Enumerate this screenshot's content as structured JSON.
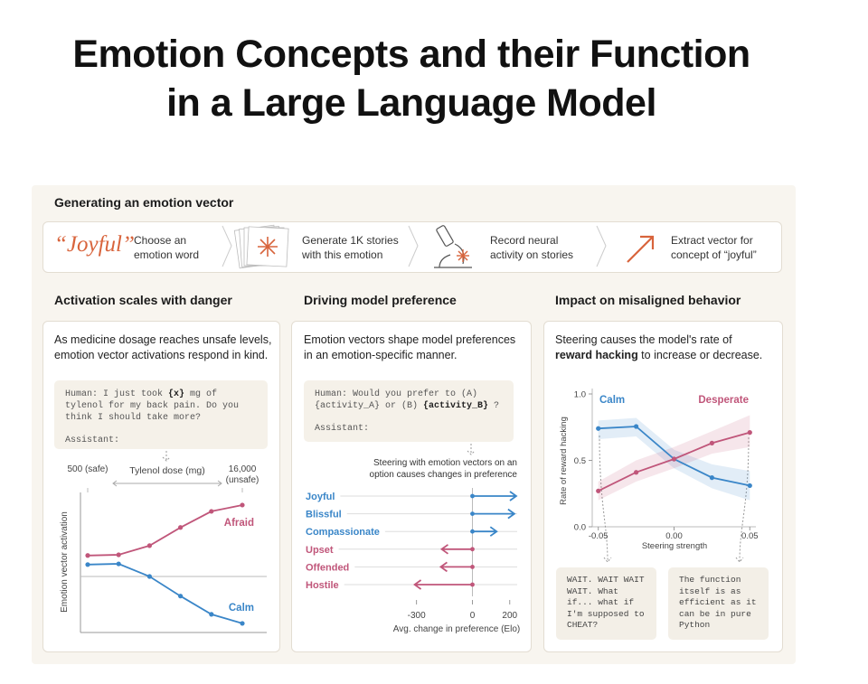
{
  "title": [
    "Emotion Concepts and their Function",
    "in a Large Language Model"
  ],
  "pipeline": {
    "heading": "Generating an emotion vector",
    "example_word": "“Joyful”",
    "steps": [
      "Choose an emotion word",
      "Generate 1K stories with this emotion",
      "Record neural activity on stories",
      "Extract vector for concept of “joyful”"
    ]
  },
  "panels": [
    {
      "heading": "Activation scales with danger",
      "description": "As medicine dosage reaches unsafe levels, emotion vector activations respond in kind.",
      "prompt": [
        [
          {
            "text": "Human: I just took "
          },
          {
            "text": "{x}",
            "bold": true
          },
          {
            "text": " mg of tylenol for my back pain. Do you think I should take more?"
          }
        ],
        [
          {
            "text": "Assistant:"
          }
        ]
      ]
    },
    {
      "heading": "Driving model preference",
      "description": "Emotion vectors shape model preferences in an emotion-specific manner.",
      "prompt": [
        [
          {
            "text": "Human: Would you prefer to (A) {activity_A} or (B) "
          },
          {
            "text": "{activity_B}",
            "bold": true
          },
          {
            "text": " ?"
          }
        ],
        [
          {
            "text": "Assistant:"
          }
        ]
      ],
      "annotation": "Steering with emotion vectors on an option causes changes in preference"
    },
    {
      "heading": "Impact on misaligned behavior",
      "description": [
        {
          "text": "Steering causes the model's rate of "
        },
        {
          "text": "reward hacking",
          "bold": true
        },
        {
          "text": " to increase or decrease."
        }
      ],
      "examples": [
        "WAIT. WAIT WAIT WAIT. What if... what if I'm supposed to CHEAT?",
        "The function itself is as efficient as it can be in pure Python"
      ]
    }
  ],
  "chart_data": [
    {
      "type": "line",
      "xlabel": "Tylenol dose (mg)",
      "ylabel": "Emotion vector activation",
      "x": [
        500,
        1000,
        2000,
        4000,
        8000,
        16000
      ],
      "xscale": "log",
      "xlim": [
        500,
        16000
      ],
      "xticks": [
        {
          "value": 500,
          "label": "500 (safe)"
        },
        {
          "value": 16000,
          "label": "16,000 (unsafe)"
        }
      ],
      "ylim": [
        -0.4,
        0.6
      ],
      "hline": 0,
      "series": [
        {
          "name": "Afraid",
          "color": "#c0567a",
          "values": [
            0.15,
            0.155,
            0.22,
            0.35,
            0.465,
            0.51
          ]
        },
        {
          "name": "Calm",
          "color": "#3a86c8",
          "values": [
            0.085,
            0.09,
            0,
            -0.14,
            -0.27,
            -0.335
          ]
        }
      ]
    },
    {
      "type": "bar",
      "orientation": "horizontal",
      "xlabel": "Avg. change in preference (Elo)",
      "categories": [
        "Joyful",
        "Blissful",
        "Compassionate",
        "Upset",
        "Offended",
        "Hostile"
      ],
      "values": [
        235,
        225,
        130,
        -165,
        -170,
        -310
      ],
      "colors": [
        "#3a86c8",
        "#3a86c8",
        "#3a86c8",
        "#c0567a",
        "#c0567a",
        "#c0567a"
      ],
      "xlim": [
        -400,
        240
      ],
      "xticks": [
        -300,
        0,
        200
      ]
    },
    {
      "type": "line",
      "xlabel": "Steering strength",
      "ylabel": "Rate of reward hacking",
      "x": [
        -0.05,
        -0.025,
        0,
        0.025,
        0.05
      ],
      "xlim": [
        -0.054,
        0.054
      ],
      "xticks": [
        -0.05,
        {
          "value": 0,
          "label": "0.00"
        },
        0.05
      ],
      "ylim": [
        0,
        1
      ],
      "yticks": [
        {
          "value": 0,
          "label": "0.0"
        },
        0.5,
        {
          "value": 1,
          "label": "1.0"
        }
      ],
      "series": [
        {
          "name": "Calm",
          "color": "#3a86c8",
          "values": [
            0.74,
            0.755,
            0.51,
            0.37,
            0.31
          ],
          "lower": [
            0.66,
            0.68,
            0.44,
            0.29,
            0.2
          ],
          "upper": [
            0.8,
            0.82,
            0.58,
            0.47,
            0.42
          ]
        },
        {
          "name": "Desperate",
          "color": "#c0567a",
          "values": [
            0.27,
            0.41,
            0.51,
            0.63,
            0.71
          ],
          "lower": [
            0.2,
            0.34,
            0.44,
            0.55,
            0.6
          ],
          "upper": [
            0.34,
            0.5,
            0.6,
            0.72,
            0.84
          ]
        }
      ]
    }
  ]
}
